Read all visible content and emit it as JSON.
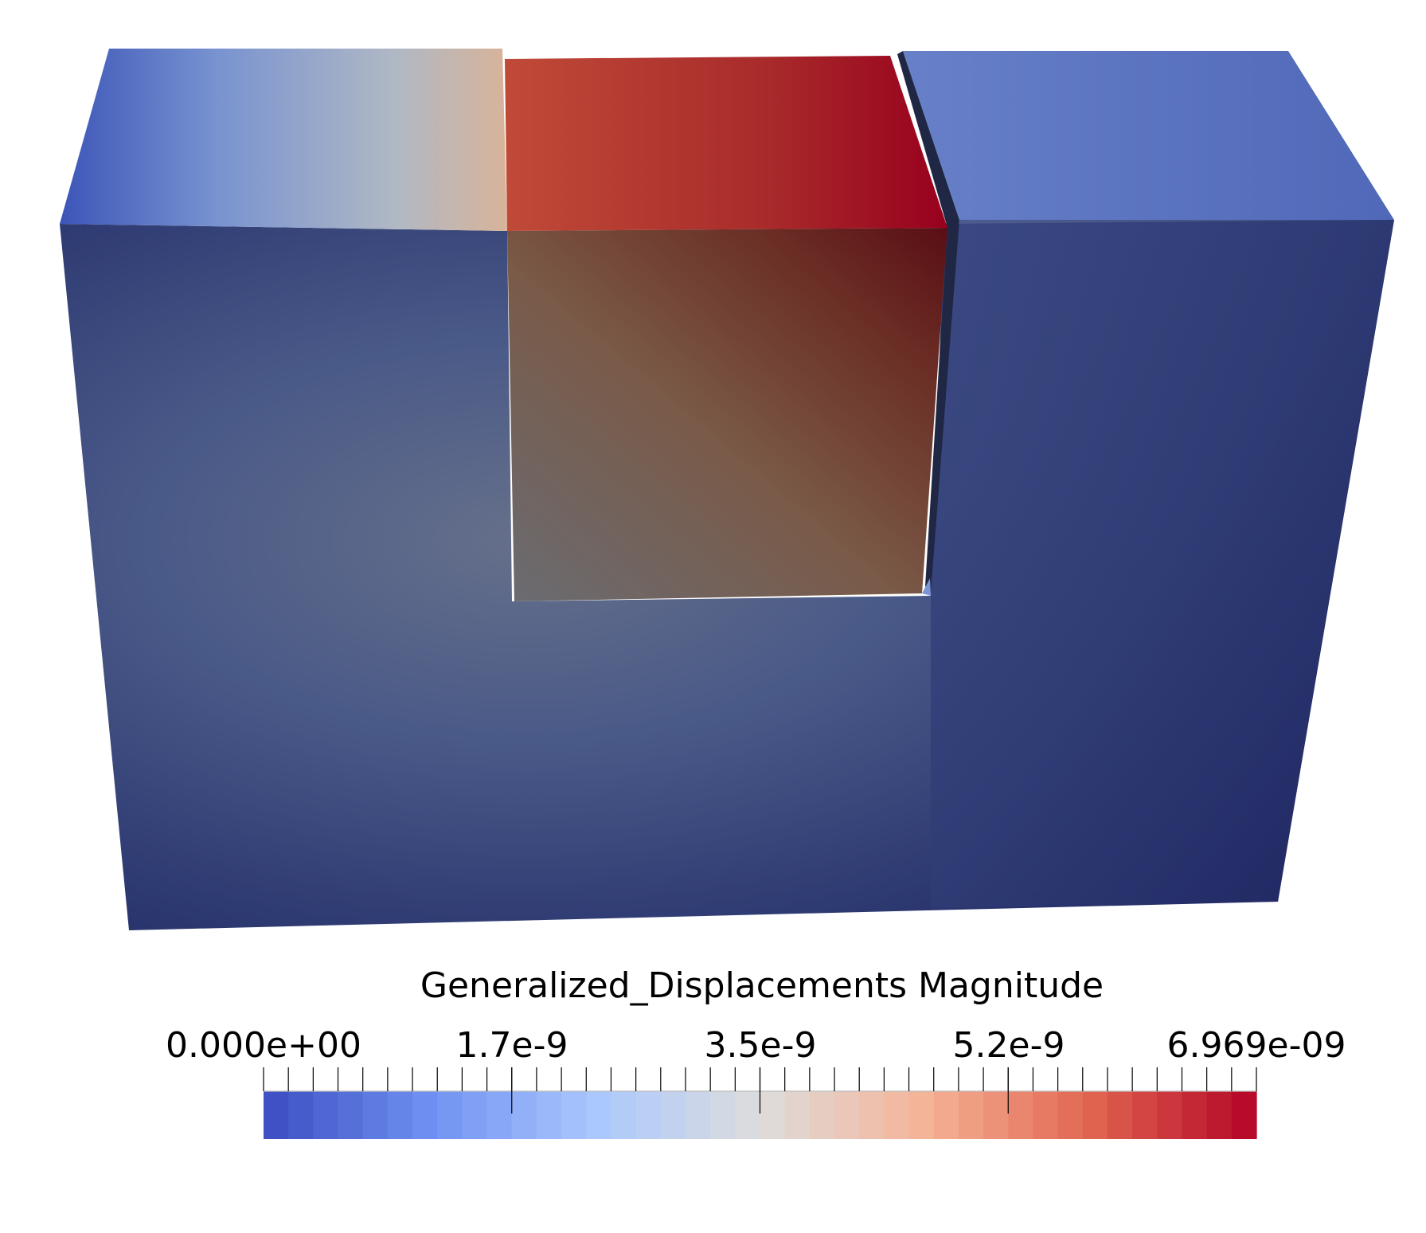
{
  "legend": {
    "title": "Generalized_Displacements Magnitude",
    "tick_labels": [
      "0.000e+00",
      "1.7e-9",
      "3.5e-9",
      "5.2e-9",
      "6.969e-09"
    ],
    "range": [
      0,
      6.969e-09
    ],
    "colormap_stops": [
      "#3b4cc0",
      "#6f91f2",
      "#aac7fd",
      "#dddddd",
      "#f5b396",
      "#e0654f",
      "#b40426"
    ]
  },
  "scene": {
    "background": "#ffffff",
    "parts": [
      "left-block",
      "center-block",
      "right-block"
    ]
  }
}
